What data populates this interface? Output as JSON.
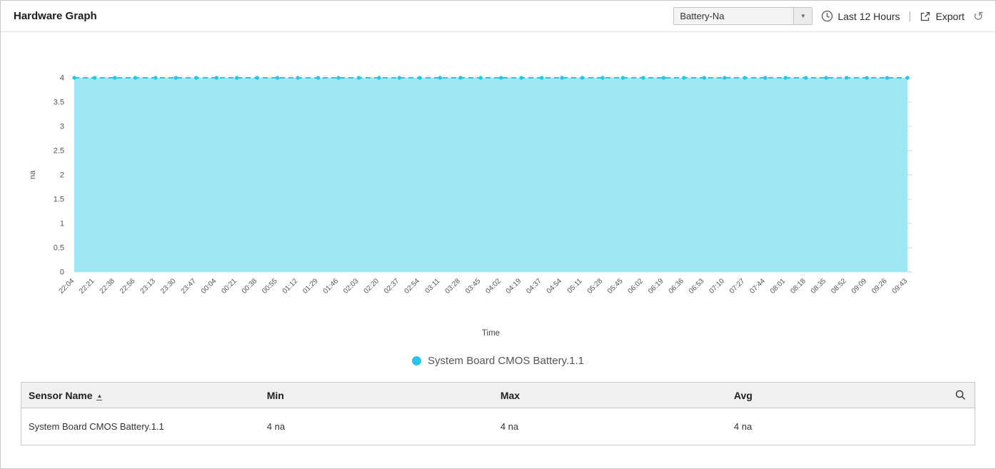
{
  "header": {
    "title": "Hardware Graph",
    "dropdown": {
      "value": "Battery-Na"
    },
    "time_range": "Last 12 Hours",
    "separator": "|",
    "export_label": "Export"
  },
  "chart_data": {
    "type": "area",
    "title": "",
    "xlabel": "Time",
    "ylabel": "na",
    "ylim": [
      0,
      4
    ],
    "yticks": [
      0,
      0.5,
      1,
      1.5,
      2,
      2.5,
      3,
      3.5,
      4
    ],
    "grid": true,
    "legend_position": "bottom",
    "categories": [
      "22:04",
      "22:21",
      "22:38",
      "22:56",
      "23:13",
      "23:30",
      "23:47",
      "00:04",
      "00:21",
      "00:38",
      "00:55",
      "01:12",
      "01:29",
      "01:46",
      "02:03",
      "02:20",
      "02:37",
      "02:54",
      "03:11",
      "03:28",
      "03:45",
      "04:02",
      "04:19",
      "04:37",
      "04:54",
      "05:11",
      "05:28",
      "05:45",
      "06:02",
      "06:19",
      "06:36",
      "06:53",
      "07:10",
      "07:27",
      "07:44",
      "08:01",
      "08:18",
      "08:35",
      "08:52",
      "09:09",
      "09:26",
      "09:43"
    ],
    "series": [
      {
        "name": "System Board CMOS Battery.1.1",
        "values": [
          4,
          4,
          4,
          4,
          4,
          4,
          4,
          4,
          4,
          4,
          4,
          4,
          4,
          4,
          4,
          4,
          4,
          4,
          4,
          4,
          4,
          4,
          4,
          4,
          4,
          4,
          4,
          4,
          4,
          4,
          4,
          4,
          4,
          4,
          4,
          4,
          4,
          4,
          4,
          4,
          4,
          4
        ]
      }
    ],
    "colors": {
      "line": "#29c5e8",
      "fill": "#9de8f3"
    }
  },
  "legend": {
    "items": [
      {
        "label": "System Board CMOS Battery.1.1",
        "color": "#29c5e8"
      }
    ]
  },
  "table": {
    "columns": [
      "Sensor Name",
      "Min",
      "Max",
      "Avg"
    ],
    "rows": [
      {
        "sensor": "System Board CMOS Battery.1.1",
        "min": "4 na",
        "max": "4 na",
        "avg": "4 na"
      }
    ]
  }
}
